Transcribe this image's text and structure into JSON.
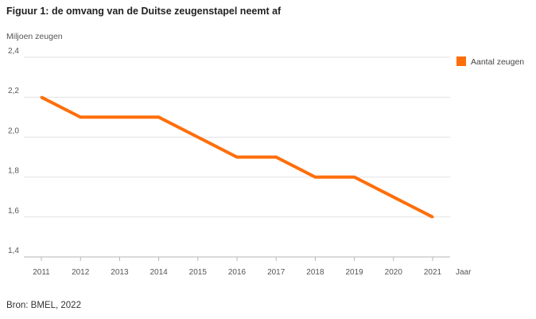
{
  "figure": {
    "title": "Figuur 1: de omvang van de Duitse zeugenstapel neemt af",
    "source": "Bron: BMEL, 2022"
  },
  "chart_data": {
    "type": "line",
    "ylabel": "Miljoen zeugen",
    "xlabel": "Jaar",
    "x": [
      "2011",
      "2012",
      "2013",
      "2014",
      "2015",
      "2016",
      "2017",
      "2018",
      "2019",
      "2020",
      "2021"
    ],
    "series": [
      {
        "name": "Aantal zeugen",
        "color": "#ff6e0a",
        "values": [
          2.2,
          2.1,
          2.1,
          2.1,
          2.0,
          1.9,
          1.9,
          1.8,
          1.8,
          1.7,
          1.6
        ]
      }
    ],
    "ylim": [
      1.4,
      2.4
    ],
    "yticks": [
      "1,4",
      "1,6",
      "1,8",
      "2,0",
      "2,2",
      "2,4"
    ],
    "legend_position": "top-right",
    "grid": true
  }
}
